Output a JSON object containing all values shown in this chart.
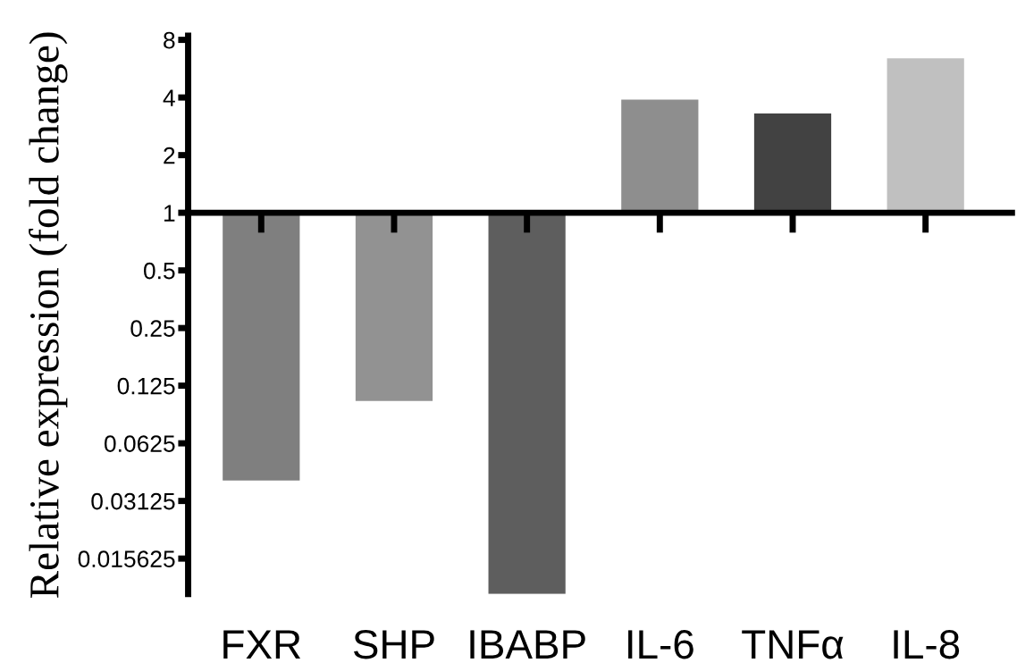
{
  "chart_data": {
    "type": "bar",
    "ylabel": "Relative expression (fold change)",
    "categories": [
      "FXR",
      "SHP",
      "IBABP",
      "IL-6",
      "TNFα",
      "IL-8"
    ],
    "base": [
      1,
      1,
      1,
      1,
      1,
      1
    ],
    "values": [
      -0.96,
      -0.896,
      -0.9898,
      2.9,
      2.3,
      5.4
    ],
    "colors": [
      "#7f7f7f",
      "#929292",
      "#5e5e5e",
      "#8e8e8e",
      "#424242",
      "#c0c0c0"
    ],
    "log": "y",
    "ylim": [
      0.0102,
      8.4
    ],
    "yticks": [
      0.015625,
      0.03125,
      0.0625,
      0.125,
      0.25,
      0.5,
      1,
      2,
      4,
      8
    ],
    "legend": false
  }
}
